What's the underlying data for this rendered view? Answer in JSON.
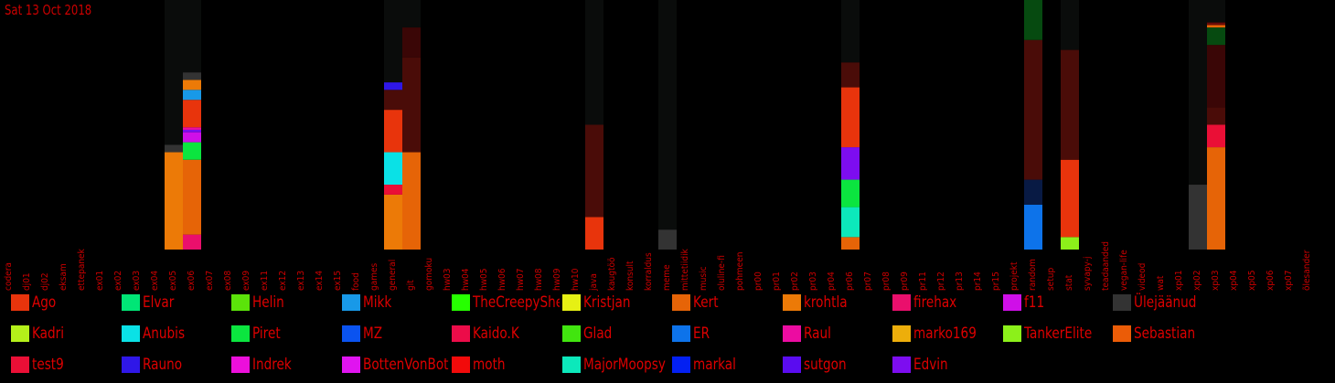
{
  "date_label": "Sat 13 Oct 2018",
  "chart_data": {
    "type": "bar",
    "stacked": true,
    "ylim": [
      0,
      100
    ],
    "categories": [
      "codera",
      "dj01",
      "dj02",
      "eksam",
      "ettepanek",
      "ex01",
      "ex02",
      "ex03",
      "ex04",
      "ex05",
      "ex06",
      "ex07",
      "ex08",
      "ex09",
      "ex11",
      "ex12",
      "ex13",
      "ex14",
      "ex15",
      "food",
      "games",
      "general",
      "git",
      "gomoku",
      "hw03",
      "hw04",
      "hw05",
      "hw06",
      "hw07",
      "hw08",
      "hw09",
      "hw10",
      "java",
      "kaugtöö",
      "konsult",
      "korraldus",
      "meme",
      "mittetiidik",
      "music",
      "oluline-fi",
      "pohmeen",
      "pr00",
      "pr01",
      "pr02",
      "pr03",
      "pr04",
      "pr06",
      "pr07",
      "pr08",
      "pr09",
      "pr11",
      "pr12",
      "pr13",
      "pr14",
      "pr15",
      "projekt",
      "random",
      "setup",
      "stat",
      "syvapy-j",
      "teadaanded",
      "vegan-life",
      "videod",
      "wat",
      "xp01",
      "xp02",
      "xp03",
      "xp04",
      "xp05",
      "xp06",
      "xp07",
      "õlesander"
    ],
    "bars": [
      {
        "category": "ex05",
        "segments": [
          {
            "user": "krohtla",
            "value": 39
          },
          {
            "user": "Ülejäänud",
            "value": 3
          },
          {
            "user": "background",
            "value": 58
          }
        ]
      },
      {
        "category": "ex06",
        "segments": [
          {
            "user": "firehax",
            "value": 6
          },
          {
            "user": "Kert",
            "value": 30
          },
          {
            "user": "Piret",
            "value": 7
          },
          {
            "user": "f11",
            "value": 4
          },
          {
            "user": "Edvin",
            "value": 1
          },
          {
            "user": "Raul",
            "value": 1
          },
          {
            "user": "Ago",
            "value": 11
          },
          {
            "user": "Mikk",
            "value": 4
          },
          {
            "user": "krohtla",
            "value": 4
          },
          {
            "user": "Ülejäänud",
            "value": 3
          },
          {
            "user": "background",
            "value": 29
          }
        ]
      },
      {
        "category": "general",
        "segments": [
          {
            "user": "krohtla",
            "value": 22
          },
          {
            "user": "test9",
            "value": 4
          },
          {
            "user": "Anubis",
            "value": 13
          },
          {
            "user": "Ago",
            "value": 17
          },
          {
            "user": "dark-red",
            "value": 8
          },
          {
            "user": "Rauno",
            "value": 3
          },
          {
            "user": "background",
            "value": 33
          }
        ]
      },
      {
        "category": "git",
        "segments": [
          {
            "user": "Kert",
            "value": 39
          },
          {
            "user": "dark-red",
            "value": 38
          },
          {
            "user": "dark-red-2",
            "value": 12
          },
          {
            "user": "background",
            "value": 11
          }
        ]
      },
      {
        "category": "java",
        "segments": [
          {
            "user": "Ago",
            "value": 13
          },
          {
            "user": "dark-red",
            "value": 37
          },
          {
            "user": "background",
            "value": 50
          }
        ]
      },
      {
        "category": "meme",
        "segments": [
          {
            "user": "Ülejäänud",
            "value": 8
          },
          {
            "user": "background",
            "value": 92
          }
        ]
      },
      {
        "category": "pr06",
        "segments": [
          {
            "user": "Kert",
            "value": 5
          },
          {
            "user": "MajorMoopsy",
            "value": 12
          },
          {
            "user": "Piret",
            "value": 11
          },
          {
            "user": "Edvin",
            "value": 13
          },
          {
            "user": "Ago",
            "value": 24
          },
          {
            "user": "dark-red",
            "value": 10
          },
          {
            "user": "background",
            "value": 25
          }
        ]
      },
      {
        "category": "random",
        "segments": [
          {
            "user": "ER",
            "value": 18
          },
          {
            "user": "dark-navy",
            "value": 10
          },
          {
            "user": "dark-red",
            "value": 56
          },
          {
            "user": "dark-green",
            "value": 16
          }
        ]
      },
      {
        "category": "stat",
        "segments": [
          {
            "user": "TankerElite",
            "value": 5
          },
          {
            "user": "Ago",
            "value": 31
          },
          {
            "user": "dark-red",
            "value": 44
          },
          {
            "user": "background",
            "value": 20
          }
        ]
      },
      {
        "category": "xp02",
        "segments": [
          {
            "user": "Ülejäänud",
            "value": 26
          },
          {
            "user": "background",
            "value": 74
          }
        ]
      },
      {
        "category": "xp03",
        "segments": [
          {
            "user": "Kert",
            "value": 41
          },
          {
            "user": "test9",
            "value": 9
          },
          {
            "user": "dark-red",
            "value": 7
          },
          {
            "user": "dark-red-2",
            "value": 25
          },
          {
            "user": "dark-green",
            "value": 7
          },
          {
            "user": "Kert-line",
            "value": 1
          },
          {
            "user": "dark-red-3",
            "value": 1
          },
          {
            "user": "background",
            "value": 9
          }
        ]
      }
    ],
    "legend": [
      {
        "name": "Ago",
        "color": "#e8340c"
      },
      {
        "name": "Elvar",
        "color": "#00e676"
      },
      {
        "name": "Helin",
        "color": "#5be30a"
      },
      {
        "name": "Mikk",
        "color": "#1899e8"
      },
      {
        "name": "TheCreepySheep",
        "color": "#26ff00"
      },
      {
        "name": "Kristjan",
        "color": "#e6f014"
      },
      {
        "name": "Kert",
        "color": "#e66407"
      },
      {
        "name": "krohtla",
        "color": "#ec7a07"
      },
      {
        "name": "firehax",
        "color": "#ea0f6c"
      },
      {
        "name": "f11",
        "color": "#cf0fe8"
      },
      {
        "name": "Ülejäänud",
        "color": "#333333"
      },
      {
        "name": "Kadri",
        "color": "#b4f01a"
      },
      {
        "name": "Anubis",
        "color": "#0ae1e6"
      },
      {
        "name": "Piret",
        "color": "#0be53f"
      },
      {
        "name": "MZ",
        "color": "#0a53f0"
      },
      {
        "name": "Kaido.K",
        "color": "#ec0c49"
      },
      {
        "name": "Glad",
        "color": "#41e50f"
      },
      {
        "name": "ER",
        "color": "#0d73ea"
      },
      {
        "name": "Raul",
        "color": "#ec0ca1"
      },
      {
        "name": "marko169",
        "color": "#edae0b"
      },
      {
        "name": "TankerElite",
        "color": "#8cf01a"
      },
      {
        "name": "Sebastian",
        "color": "#eb5c07"
      },
      {
        "name": "test9",
        "color": "#ea0f36"
      },
      {
        "name": "Rauno",
        "color": "#2f17e8"
      },
      {
        "name": "Indrek",
        "color": "#ec0fdb"
      },
      {
        "name": "BottenVonBot",
        "color": "#e014f0"
      },
      {
        "name": "moth",
        "color": "#f20a0a"
      },
      {
        "name": "MajorMoopsy",
        "color": "#0ce8bb"
      },
      {
        "name": "markal",
        "color": "#0320f2"
      },
      {
        "name": "sutgon",
        "color": "#5a0cf0"
      },
      {
        "name": "Edvin",
        "color": "#7d0df0"
      }
    ],
    "extra_colors": {
      "background": "#0a0c0b",
      "dark-red": "#4a0c08",
      "dark-red-2": "#3a0606",
      "dark-red-3": "#6a0a08",
      "dark-navy": "#081a44",
      "dark-green": "#064a10",
      "Kert-line": "#e66407"
    }
  }
}
